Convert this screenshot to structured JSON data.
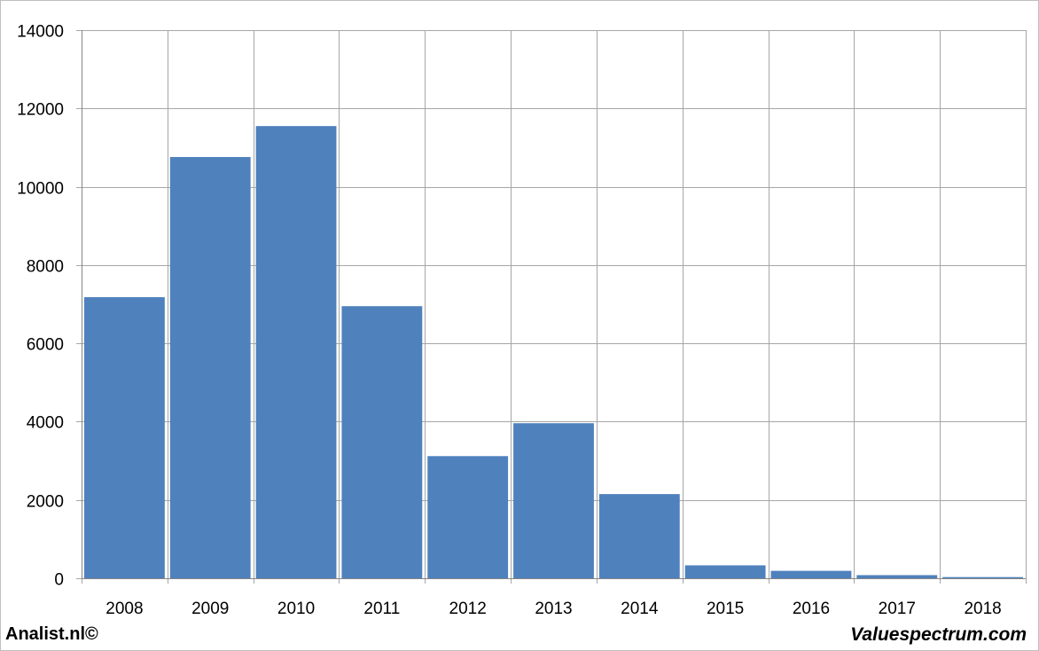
{
  "chart_data": {
    "type": "bar",
    "categories": [
      "2008",
      "2009",
      "2010",
      "2011",
      "2012",
      "2013",
      "2014",
      "2015",
      "2016",
      "2017",
      "2018"
    ],
    "values": [
      7180,
      10760,
      11550,
      6950,
      3120,
      3960,
      2150,
      330,
      190,
      80,
      30
    ],
    "title": "",
    "xlabel": "",
    "ylabel": "",
    "ylim": [
      0,
      14000
    ],
    "yticks": [
      0,
      2000,
      4000,
      6000,
      8000,
      10000,
      12000,
      14000
    ],
    "grid": true,
    "legend": "none",
    "bar_color": "#4f81bd",
    "grid_color": "#a6a6a6"
  },
  "footer": {
    "left": "Analist.nl©",
    "right": "Valuespectrum.com"
  }
}
